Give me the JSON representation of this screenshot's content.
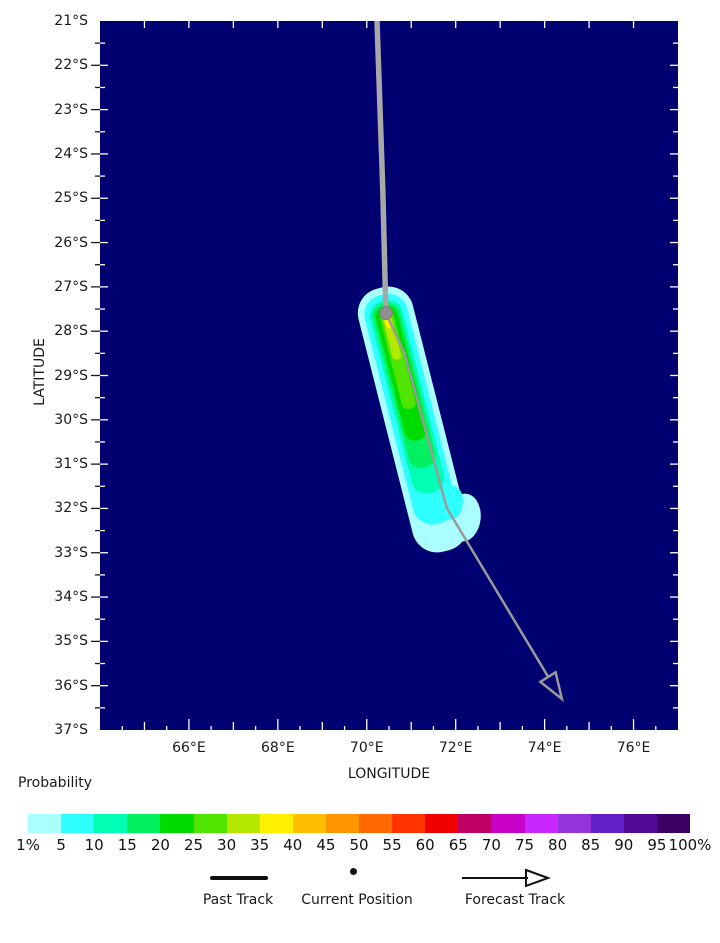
{
  "colors": {
    "ocean": "#000070",
    "past_track": "#a8a8a8",
    "forecast_track": "#9a9a9a",
    "position_dot": "#8f8f8f",
    "tick_white": "#ffffff",
    "tick_black": "#1a1a1a"
  },
  "probability_label": "Probability",
  "legend": {
    "items": [
      {
        "label": "Past Track",
        "symbol": "thick-line"
      },
      {
        "label": "Current Position",
        "symbol": "dot"
      },
      {
        "label": "Forecast Track",
        "symbol": "open-arrow"
      }
    ]
  },
  "chart_data": {
    "type": "heatmap",
    "subtype": "tropical-cyclone-strike-probability-map",
    "title": "",
    "xlabel": "LONGITUDE",
    "ylabel": "LATITUDE",
    "xlim": [
      64,
      77
    ],
    "ylim": [
      -37,
      -21
    ],
    "lat_range_south": [
      21,
      37
    ],
    "grid": false,
    "x_tick_values": [
      66,
      68,
      70,
      72,
      74,
      76
    ],
    "x_tick_labels": [
      "66°E",
      "68°E",
      "70°E",
      "72°E",
      "74°E",
      "76°E"
    ],
    "y_tick_values": [
      21,
      22,
      23,
      24,
      25,
      26,
      27,
      28,
      29,
      30,
      31,
      32,
      33,
      34,
      35,
      36,
      37
    ],
    "y_tick_labels": [
      "21°S",
      "22°S",
      "23°S",
      "24°S",
      "25°S",
      "26°S",
      "27°S",
      "28°S",
      "29°S",
      "30°S",
      "31°S",
      "32°S",
      "33°S",
      "34°S",
      "35°S",
      "36°S",
      "37°S"
    ],
    "colorbar": {
      "title": "Probability",
      "labels": [
        "1%",
        "5",
        "10",
        "15",
        "20",
        "25",
        "30",
        "35",
        "40",
        "45",
        "50",
        "55",
        "60",
        "65",
        "70",
        "75",
        "80",
        "85",
        "90",
        "95",
        "100%"
      ],
      "colors": [
        "#AAFFFF",
        "#2FFFFF",
        "#00FFB4",
        "#00F05F",
        "#00DC00",
        "#50E400",
        "#B4E800",
        "#FFF000",
        "#FFBE00",
        "#FF9600",
        "#FF6900",
        "#FF3200",
        "#F00000",
        "#BE0064",
        "#C800C8",
        "#C828FF",
        "#9632DC",
        "#6420C8",
        "#500A96",
        "#3C0064"
      ]
    },
    "past_track": [
      [
        70.23,
        21.0
      ],
      [
        70.36,
        24.8
      ],
      [
        70.43,
        27.59
      ]
    ],
    "current_position": [
      70.43,
      27.59
    ],
    "forecast_track": [
      [
        70.43,
        27.59
      ],
      [
        70.85,
        28.5
      ],
      [
        71.8,
        31.99
      ],
      [
        74.08,
        35.8
      ]
    ],
    "forecast_arrow": {
      "tip": [
        74.39,
        36.3
      ],
      "corner1": [
        73.905,
        35.913
      ],
      "corner2": [
        74.247,
        35.697
      ]
    },
    "probability_plume": {
      "origin": [
        70.43,
        27.59
      ],
      "lean_deg_east_of_south": 14.2,
      "layers": [
        {
          "kind": "band",
          "percent_at_least": 1,
          "color": "#AAFFFF",
          "offset_deg": -0.58,
          "length_deg": 6.1,
          "half_width_deg": 0.63
        },
        {
          "kind": "bulge",
          "percent_at_least": 1,
          "color": "#AAFFFF",
          "cx_deg": 0.57,
          "cy_deg": 4.89,
          "rx_deg": 0.38,
          "ry_deg": 0.54,
          "tilt_deg": 20
        },
        {
          "kind": "band",
          "percent_at_least": 5,
          "color": "#2FFFFF",
          "offset_deg": -0.42,
          "length_deg": 5.3,
          "half_width_deg": 0.49
        },
        {
          "kind": "bulge",
          "percent_at_least": 5,
          "color": "#2FFFFF",
          "cx_deg": 0.39,
          "cy_deg": 4.5,
          "rx_deg": 0.25,
          "ry_deg": 0.38,
          "tilt_deg": 20
        },
        {
          "kind": "band",
          "percent_at_least": 10,
          "color": "#00FFB4",
          "offset_deg": -0.28,
          "length_deg": 4.45,
          "half_width_deg": 0.37
        },
        {
          "kind": "band",
          "percent_at_least": 15,
          "color": "#00F05F",
          "offset_deg": -0.22,
          "length_deg": 3.8,
          "half_width_deg": 0.31
        },
        {
          "kind": "band",
          "percent_at_least": 20,
          "color": "#00DC00",
          "offset_deg": -0.15,
          "length_deg": 3.1,
          "half_width_deg": 0.25
        },
        {
          "kind": "band",
          "percent_at_least": 25,
          "color": "#50E400",
          "offset_deg": -0.08,
          "length_deg": 2.3,
          "half_width_deg": 0.155
        },
        {
          "kind": "band",
          "percent_at_least": 30,
          "color": "#B4E800",
          "offset_deg": -0.02,
          "length_deg": 1.1,
          "half_width_deg": 0.1
        },
        {
          "kind": "band",
          "percent_at_least": 35,
          "color": "#FFF000",
          "offset_deg": 0.02,
          "length_deg": 0.33,
          "half_width_deg": 0.065
        }
      ]
    }
  }
}
